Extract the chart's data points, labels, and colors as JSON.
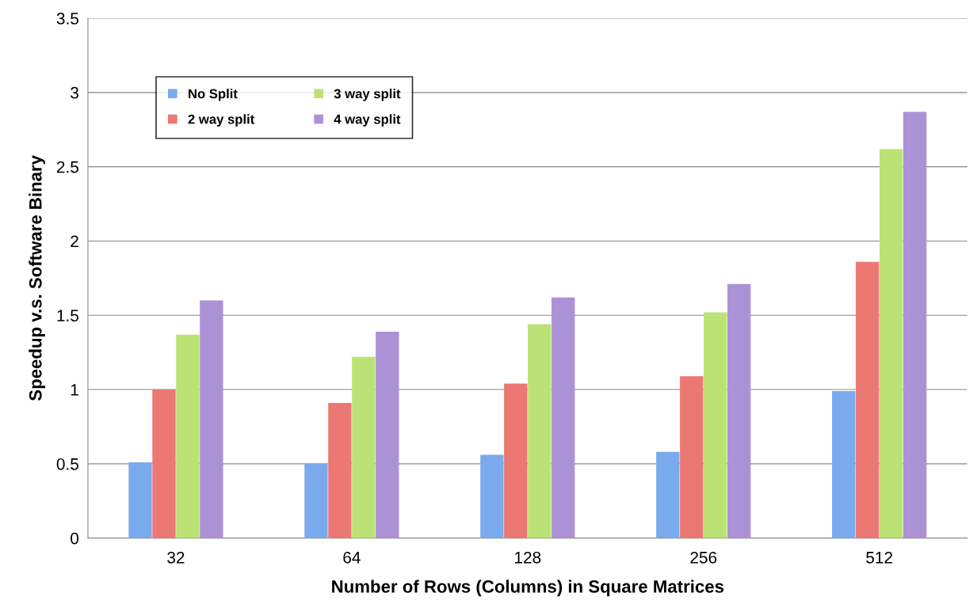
{
  "chart_data": {
    "type": "bar",
    "xlabel": "Number of Rows (Columns) in Square Matrices",
    "ylabel": "Speedup v.s. Software Binary",
    "categories": [
      "32",
      "64",
      "128",
      "256",
      "512"
    ],
    "series": [
      {
        "name": "No Split",
        "color": "#7aaaee",
        "values": [
          0.51,
          0.5,
          0.56,
          0.58,
          0.99
        ]
      },
      {
        "name": "2 way split",
        "color": "#ec7874",
        "values": [
          1.0,
          0.91,
          1.04,
          1.09,
          1.86
        ]
      },
      {
        "name": "3 way split",
        "color": "#bce276",
        "values": [
          1.37,
          1.22,
          1.44,
          1.52,
          2.62
        ]
      },
      {
        "name": "4 way split",
        "color": "#ab92d6",
        "values": [
          1.6,
          1.39,
          1.62,
          1.71,
          2.87
        ]
      }
    ],
    "ylim": [
      0,
      3.5
    ],
    "yticks": [
      0,
      0.5,
      1,
      1.5,
      2,
      2.5,
      3,
      3.5
    ],
    "grid": "y",
    "legend": "top left"
  }
}
